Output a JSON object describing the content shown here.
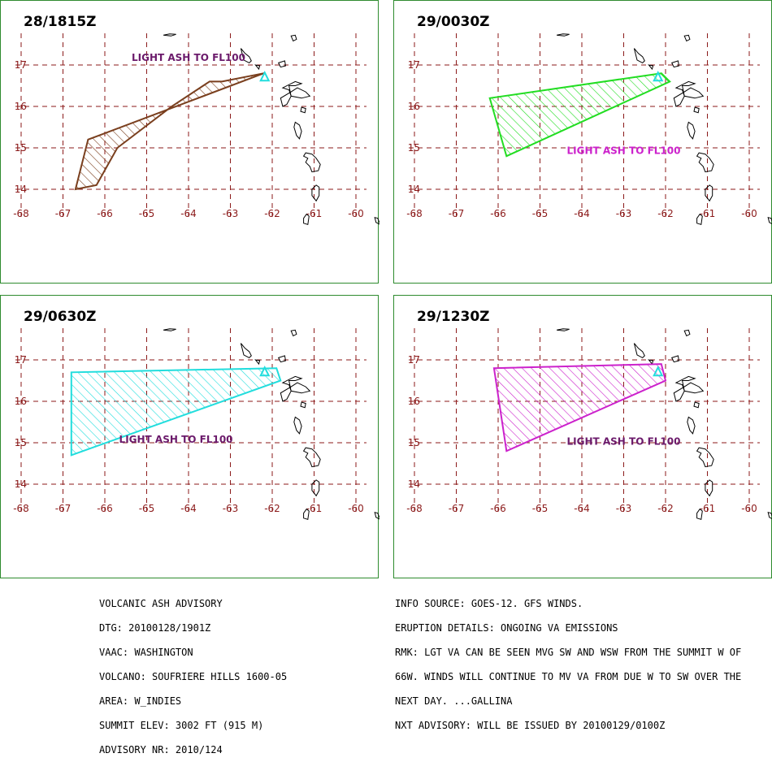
{
  "panels": [
    {
      "time": "28/1815Z",
      "label": "LIGHT ASH TO FL100",
      "label_pos": {
        "lon": -64.0,
        "lat": 17.1
      },
      "color": "#7a3f1e",
      "label_color": "#6b1a6b",
      "polygon": [
        [
          -62.2,
          16.8
        ],
        [
          -63.2,
          16.6
        ],
        [
          -63.5,
          16.6
        ],
        [
          -64.4,
          16.0
        ],
        [
          -65.7,
          15.0
        ],
        [
          -66.2,
          14.1
        ],
        [
          -66.7,
          14.0
        ],
        [
          -66.4,
          15.2
        ],
        [
          -62.2,
          16.8
        ]
      ]
    },
    {
      "time": "29/0030Z",
      "label": "LIGHT ASH TO FL100",
      "label_pos": {
        "lon": -63.0,
        "lat": 14.85
      },
      "color": "#22dd22",
      "label_color": "#cc22cc",
      "polygon": [
        [
          -62.1,
          16.8
        ],
        [
          -66.2,
          16.2
        ],
        [
          -65.8,
          14.8
        ],
        [
          -61.9,
          16.6
        ],
        [
          -62.1,
          16.8
        ]
      ]
    },
    {
      "time": "29/0630Z",
      "label": "LIGHT ASH TO FL100",
      "label_pos": {
        "lon": -64.3,
        "lat": 15.0
      },
      "color": "#22dddd",
      "label_color": "#6b1a6b",
      "polygon": [
        [
          -61.9,
          16.8
        ],
        [
          -66.8,
          16.7
        ],
        [
          -66.8,
          14.7
        ],
        [
          -61.8,
          16.5
        ],
        [
          -61.9,
          16.8
        ]
      ]
    },
    {
      "time": "29/1230Z",
      "label": "LIGHT ASH TO FL100",
      "label_pos": {
        "lon": -63.0,
        "lat": 14.95
      },
      "color": "#cc22cc",
      "label_color": "#6b1a6b",
      "polygon": [
        [
          -62.1,
          16.9
        ],
        [
          -66.1,
          16.8
        ],
        [
          -65.8,
          14.8
        ],
        [
          -62.0,
          16.5
        ],
        [
          -62.1,
          16.9
        ]
      ]
    }
  ],
  "axes": {
    "lon_ticks": [
      -68,
      -67,
      -66,
      -65,
      -64,
      -63,
      -62,
      -61,
      -60
    ],
    "lat_ticks": [
      14,
      15,
      16,
      17
    ],
    "grid_color": "#8b1a1a"
  },
  "vent": {
    "lon": -62.18,
    "lat": 16.72,
    "color": "#22dddd"
  },
  "advisory_left": [
    "VOLCANIC ASH ADVISORY",
    "DTG: 20100128/1901Z",
    "VAAC: WASHINGTON",
    "VOLCANO: SOUFRIERE HILLS 1600-05",
    "AREA: W_INDIES",
    "SUMMIT ELEV: 3002 FT (915 M)",
    "ADVISORY NR: 2010/124"
  ],
  "advisory_right": [
    "INFO SOURCE: GOES-12. GFS WINDS.",
    "ERUPTION DETAILS: ONGOING VA EMISSIONS",
    "RMK: LGT VA CAN BE SEEN MVG SW AND WSW FROM THE SUMMIT W OF",
    "66W. WINDS WILL CONTINUE TO MV VA FROM DUE W TO SW OVER THE",
    "NEXT DAY. ...GALLINA",
    "NXT ADVISORY: WILL BE ISSUED BY 20100129/0100Z"
  ]
}
